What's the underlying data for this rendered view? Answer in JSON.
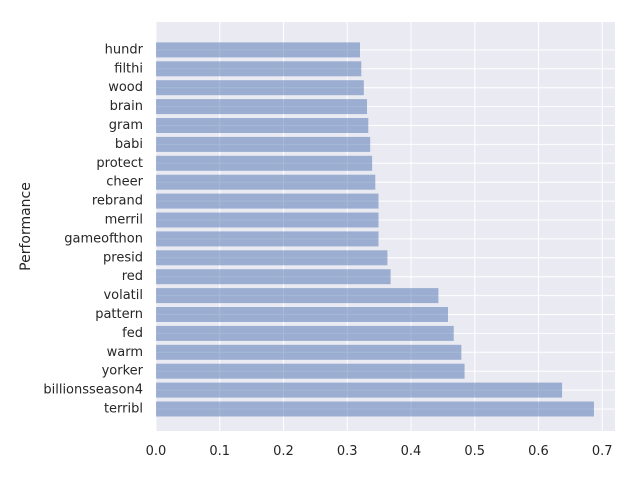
{
  "chart_data": {
    "type": "bar",
    "orientation": "horizontal",
    "title": "",
    "xlabel": "",
    "ylabel": "Performance",
    "xlim": [
      0,
      0.72
    ],
    "xticks": [
      0.0,
      0.1,
      0.2,
      0.3,
      0.4,
      0.5,
      0.6,
      0.7
    ],
    "xtick_labels": [
      "0.0",
      "0.1",
      "0.2",
      "0.3",
      "0.4",
      "0.5",
      "0.6",
      "0.7"
    ],
    "grid": true,
    "bar_color": "#4c72b0",
    "background_color": "#eaeaf2",
    "categories": [
      "terribl",
      "billionsseason4",
      "yorker",
      "warm",
      "fed",
      "pattern",
      "volatil",
      "red",
      "presid",
      "gameofthon",
      "merril",
      "rebrand",
      "cheer",
      "protect",
      "babi",
      "gram",
      "brain",
      "wood",
      "filthi",
      "hundr"
    ],
    "values": [
      0.687,
      0.637,
      0.484,
      0.479,
      0.467,
      0.458,
      0.443,
      0.368,
      0.363,
      0.349,
      0.349,
      0.349,
      0.344,
      0.339,
      0.336,
      0.333,
      0.331,
      0.326,
      0.322,
      0.32
    ]
  }
}
